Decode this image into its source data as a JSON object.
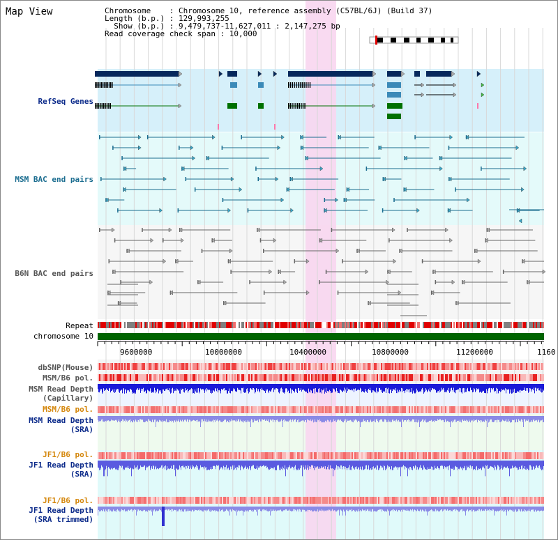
{
  "title": "Map View",
  "info": {
    "line1": "Chromosome    : Chromosome 10, reference assembly (C57BL/6J) (Build 37)",
    "line2": "Length (b.p.) : 129,993,255",
    "line3": "  Show (b.p.) : 9,479,737-11,627,011 : 2,147,275 bp",
    "line4": "Read coverage check span : 10,000"
  },
  "tracks": {
    "refseq": "RefSeq Genes",
    "msm_bac": "MSM BAC end pairs",
    "b6n_bac": "B6N BAC end pairs",
    "repeat": "Repeat",
    "chromosome": "chromosome 10",
    "dbsnp": "dbSNP(Mouse)",
    "msm_b6_pol_1": "MSM/B6 pol.",
    "msm_read_depth_cap_1": "MSM Read Depth",
    "msm_read_depth_cap_2": "(Capillary)",
    "msm_b6_pol_2": "MSM/B6 pol.",
    "msm_read_depth_sra_1": "MSM Read Depth",
    "msm_read_depth_sra_2": "(SRA)",
    "jf1_b6_pol_1": "JF1/B6 pol.",
    "jf1_read_depth_sra_1": "JF1 Read Depth",
    "jf1_read_depth_sra_2": "(SRA)",
    "jf1_b6_pol_2": "JF1/B6 pol.",
    "jf1_read_depth_trim_1": "JF1 Read Depth",
    "jf1_read_depth_trim_2": "(SRA trimmed)"
  },
  "axis_ticks": [
    "9600000",
    "10000000",
    "10400000",
    "10800000",
    "11200000",
    "1160"
  ],
  "colors": {
    "refseq_bg": "#d6f0fa",
    "msm_bac_bg": "#e4fafa",
    "b6n_bg": "#f6f6f6",
    "highlight": "#f8d6f0",
    "gene_dark": "#06285c",
    "gene_mid": "#3b8ab8",
    "gene_green": "#007000",
    "chromosome": "#006400",
    "pol_red": "#f03030",
    "depth_blue": "#2020e0",
    "depth_light": "#7070e8"
  }
}
